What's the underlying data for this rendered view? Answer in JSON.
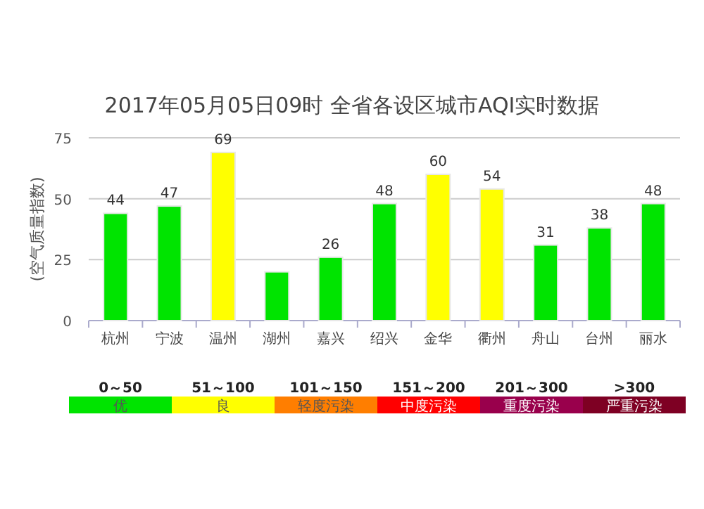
{
  "chart_data": {
    "type": "bar",
    "title": "2017年05月05日09时 全省各设区城市AQI实时数据",
    "ylabel": "(空气质量指数)",
    "categories": [
      "杭州",
      "宁波",
      "温州",
      "湖州",
      "嘉兴",
      "绍兴",
      "金华",
      "衢州",
      "舟山",
      "台州",
      "丽水"
    ],
    "values": [
      44,
      47,
      69,
      20,
      26,
      48,
      60,
      54,
      31,
      38,
      48
    ],
    "colors": [
      "#00e400",
      "#00e400",
      "#ffff00",
      "#00e400",
      "#00e400",
      "#00e400",
      "#ffff00",
      "#ffff00",
      "#00e400",
      "#00e400",
      "#00e400"
    ],
    "value_labels": [
      "44",
      "47",
      "69",
      null,
      "26",
      "48",
      "60",
      "54",
      "31",
      "38",
      "48"
    ],
    "ylim": [
      0,
      75
    ],
    "yticks": [
      0,
      25,
      50,
      75
    ],
    "grid": "y",
    "annotations": [
      "0～50",
      "51～100",
      "101～150",
      "151～200",
      "201～300",
      ">300",
      "优",
      "良",
      "轻度污染",
      "中度污染",
      "重度污染",
      "严重污染"
    ]
  }
}
